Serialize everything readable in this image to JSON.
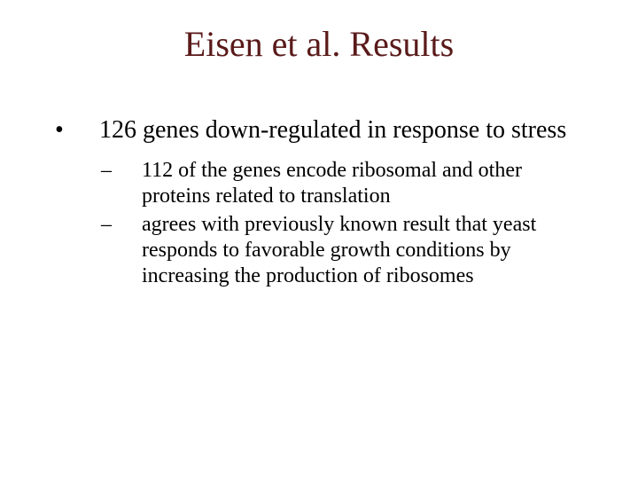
{
  "title": {
    "text": "Eisen et al. Results",
    "color": "#5a1a1a",
    "fontsize_pt": 40
  },
  "body": {
    "color": "#000000",
    "l1_fontsize_pt": 28,
    "l2_fontsize_pt": 24,
    "bullets": [
      {
        "marker": "•",
        "text": "126 genes down-regulated in response to stress",
        "sub": [
          {
            "marker": "–",
            "text": "112 of the genes encode ribosomal and other proteins related to translation"
          },
          {
            "marker": "–",
            "text": "agrees with previously known result that yeast responds to favorable growth conditions by increasing the production of ribosomes"
          }
        ]
      }
    ]
  },
  "background_color": "#ffffff"
}
